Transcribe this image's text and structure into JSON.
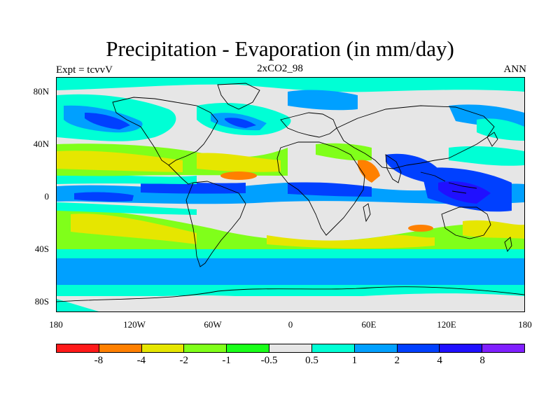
{
  "title": "Precipitation - Evaporation (in mm/day)",
  "experiment_label": "Expt = tcvvV",
  "case_label": "2xCO2_98",
  "season_label": "ANN",
  "y_axis_labels": [
    "80N",
    "40N",
    "0",
    "40S",
    "80S"
  ],
  "x_axis_labels": [
    "180",
    "120W",
    "60W",
    "0",
    "60E",
    "120E",
    "180"
  ],
  "legend": {
    "colors": [
      "#ff1a1a",
      "#ff8000",
      "#e6e600",
      "#80ff1a",
      "#1aff1a",
      "#e6e6e6",
      "#00ffd5",
      "#00a0ff",
      "#0040ff",
      "#2010ff",
      "#8020ff"
    ],
    "labels": [
      "-8",
      "-4",
      "-2",
      "-1",
      "-0.5",
      "0.5",
      "1",
      "2",
      "4",
      "8"
    ]
  },
  "colors": {
    "background_no_data": "#e6e6e6",
    "coastline": "#000000"
  }
}
